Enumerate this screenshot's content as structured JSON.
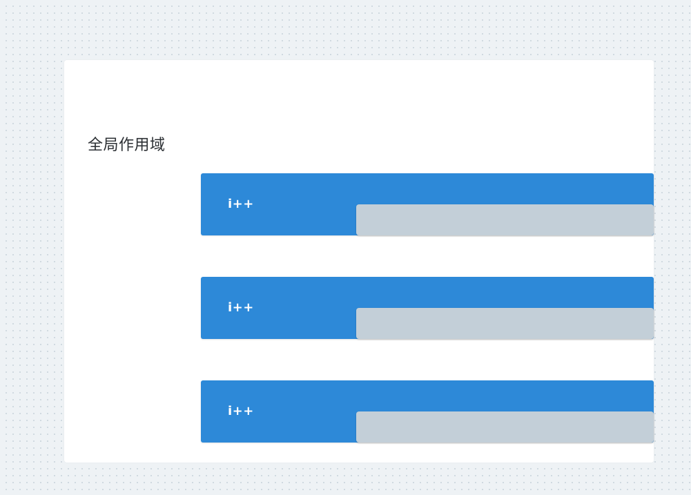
{
  "scope": {
    "title": "全局作用域"
  },
  "blocks": [
    {
      "label": "i++"
    },
    {
      "label": "i++"
    },
    {
      "label": "i++"
    }
  ],
  "colors": {
    "background": "#eef2f5",
    "card": "#ffffff",
    "block": "#2d89d8",
    "slot": "#c3cfd8",
    "title_text": "#2b2f33"
  }
}
